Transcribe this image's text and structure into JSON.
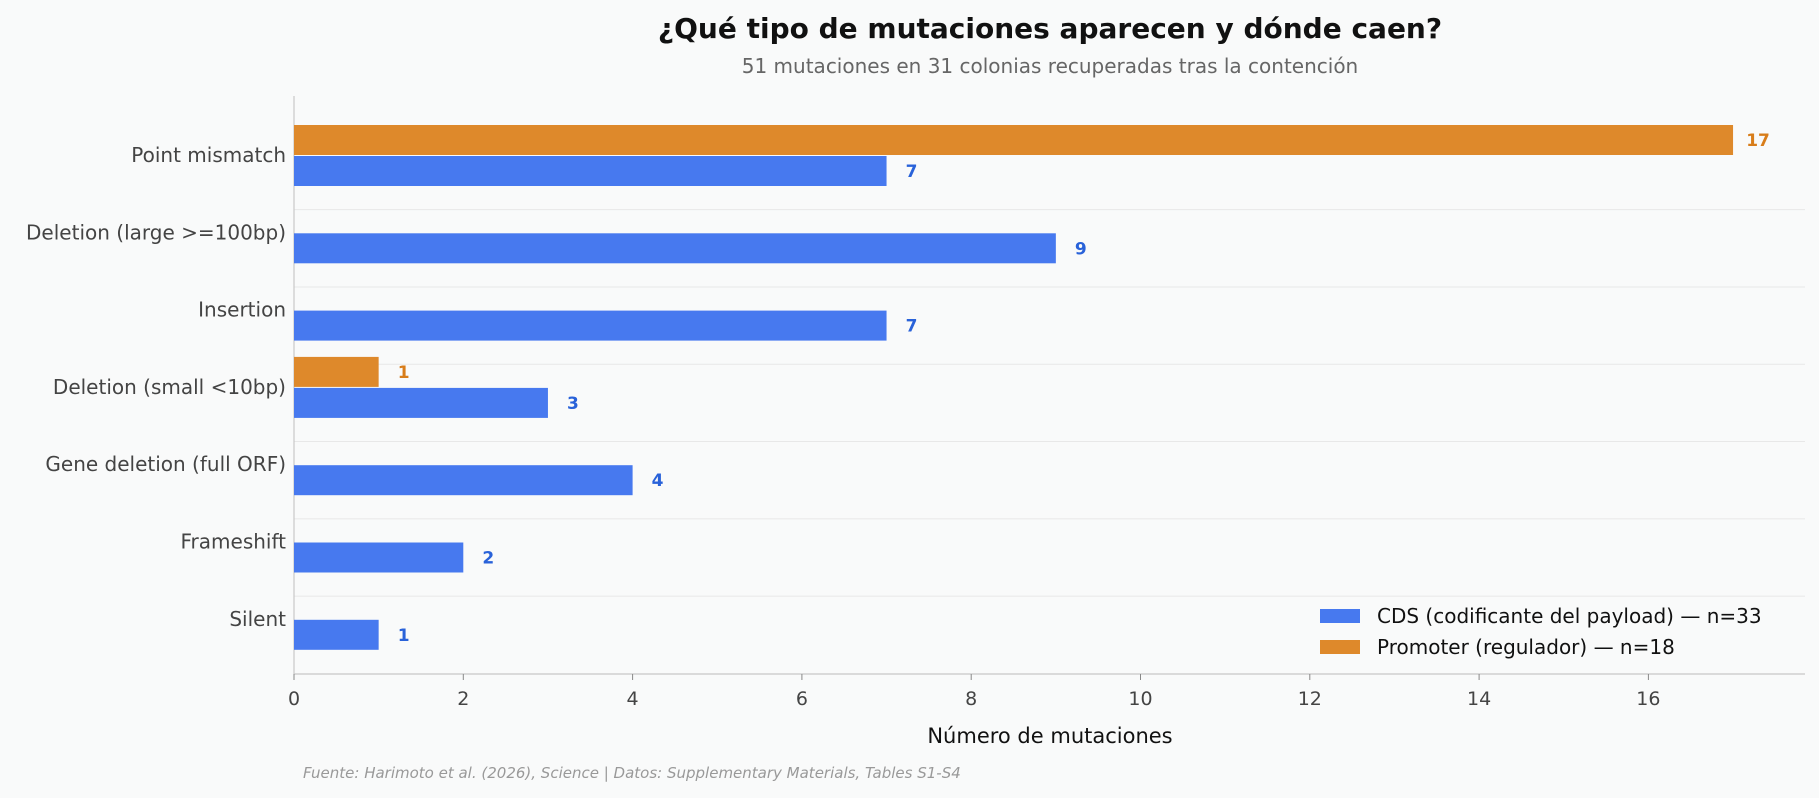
{
  "chart_data": {
    "type": "bar",
    "orientation": "horizontal",
    "title": "¿Qué tipo de mutaciones aparecen y dónde caen?",
    "subtitle": "51 mutaciones en 31 colonias recuperadas tras la contención",
    "xlabel": "Número de mutaciones",
    "ylabel": "",
    "categories": [
      "Point mismatch",
      "Deletion (large >=100bp)",
      "Insertion",
      "Deletion (small <10bp)",
      "Gene deletion (full ORF)",
      "Frameshift",
      "Silent"
    ],
    "series": [
      {
        "name": "CDS (codificante del payload) — n=33",
        "color": "#4779ef",
        "label_color": "#2962d9",
        "values": [
          7,
          9,
          7,
          3,
          4,
          2,
          1
        ]
      },
      {
        "name": "Promoter (regulador) — n=18",
        "color": "#de892b",
        "label_color": "#d87d1a",
        "values": [
          17,
          0,
          0,
          1,
          0,
          0,
          0
        ]
      }
    ],
    "xlim": [
      0,
      17.85
    ],
    "xticks": [
      0,
      2,
      4,
      6,
      8,
      10,
      12,
      14,
      16
    ],
    "grid": "horizontal",
    "legend_position": "bottom-right",
    "source": "Fuente: Harimoto et al. (2026), Science | Datos: Supplementary Materials, Tables S1-S4"
  }
}
